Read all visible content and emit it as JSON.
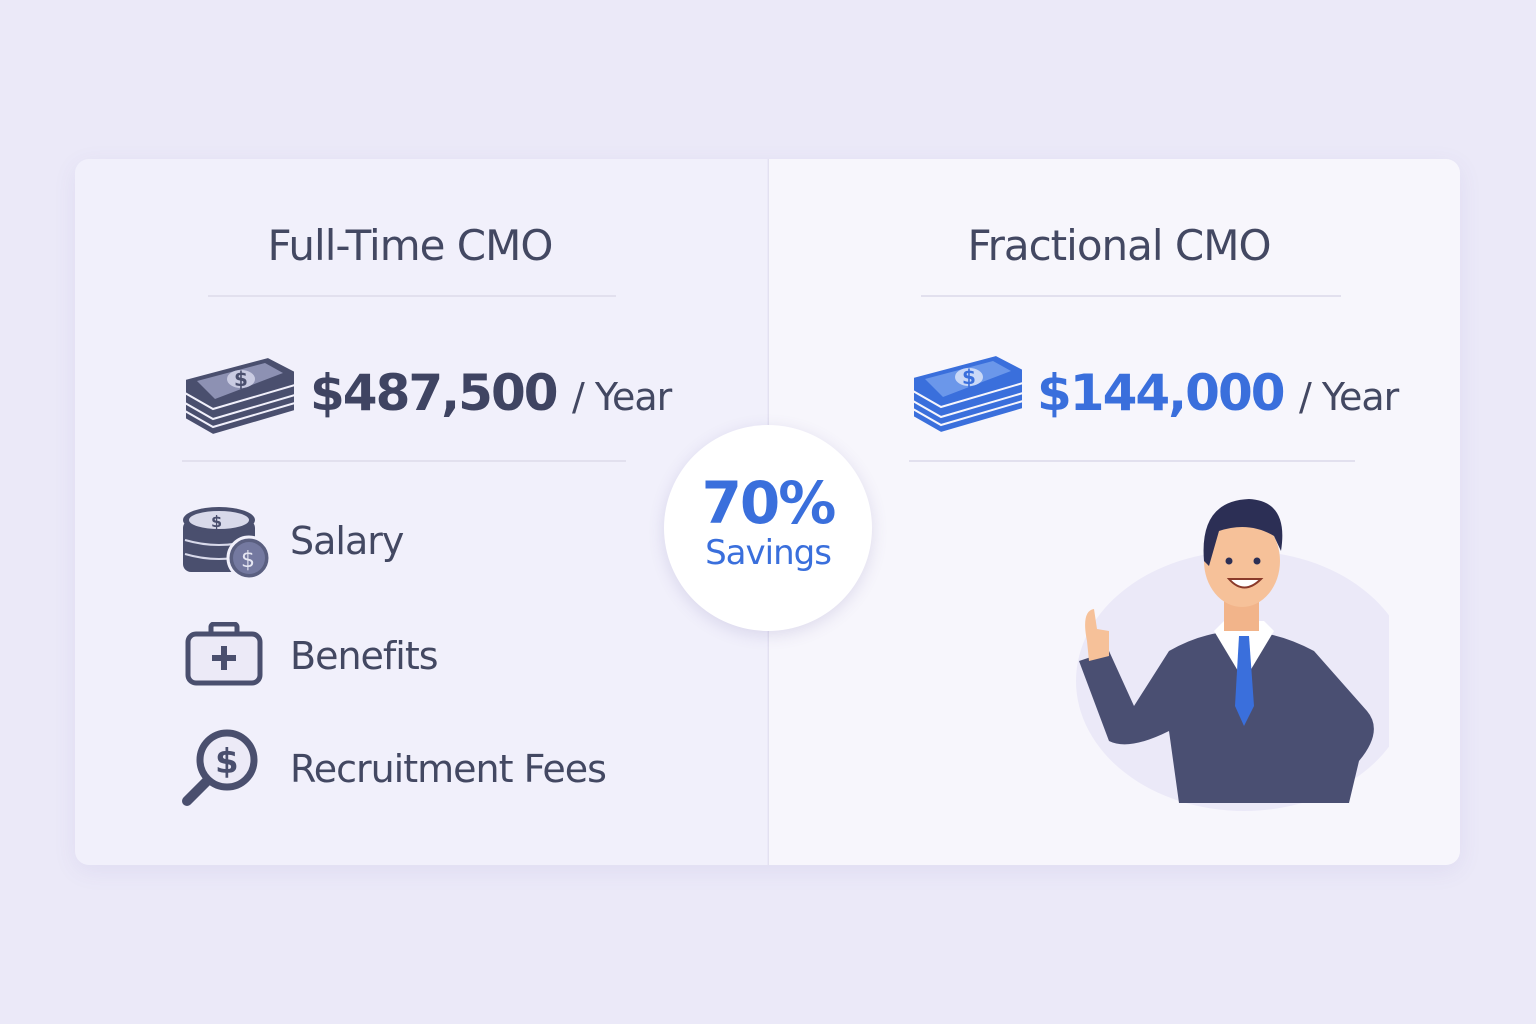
{
  "colors": {
    "background": "#ebe9f8",
    "dark": "#434862",
    "accent": "#3a6fdc"
  },
  "full_time": {
    "title": "Full-Time CMO",
    "price": "$487,500",
    "per": "/ Year",
    "icon": "money-stack-icon",
    "items": [
      {
        "label": "Salary",
        "icon": "coins-icon"
      },
      {
        "label": "Benefits",
        "icon": "medical-kit-icon"
      },
      {
        "label": "Recruitment Fees",
        "icon": "magnifier-dollar-icon"
      }
    ]
  },
  "fractional": {
    "title": "Fractional CMO",
    "price": "$144,000",
    "per": "/ Year",
    "icon": "money-stack-icon",
    "illustration": "businessman-thumbs-up"
  },
  "savings": {
    "value": "70%",
    "label": "Savings"
  }
}
